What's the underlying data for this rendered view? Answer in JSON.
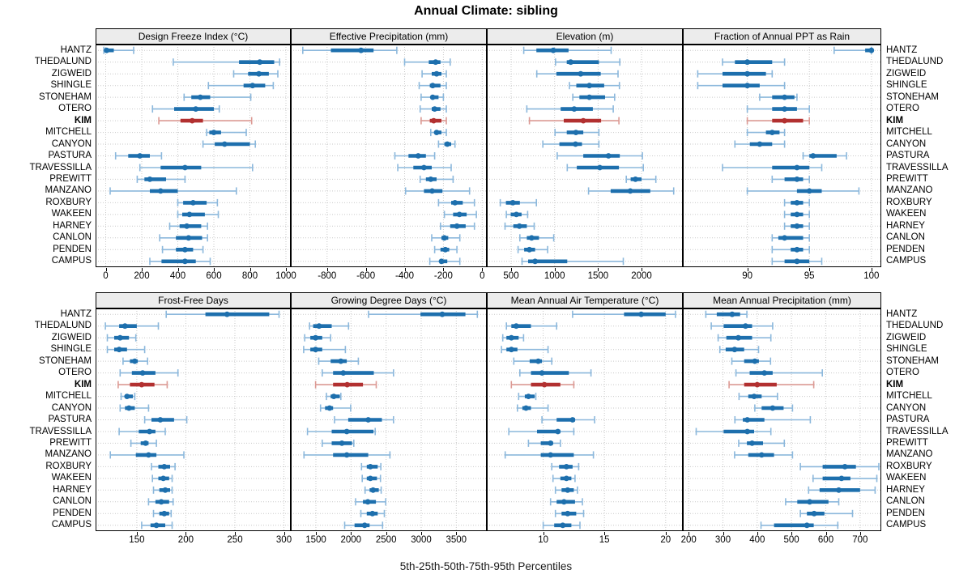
{
  "title": "Annual Climate: sibling",
  "caption": "5th-25th-50th-75th-95th Percentiles",
  "colors": {
    "blue_main": "#1d6fad",
    "blue_light": "#8cb8dc",
    "blue_cap": "#5e9cce",
    "red_main": "#b23030",
    "red_light": "#dc9a94",
    "red_cap": "#c express66",
    "grid": "#c9c9c9",
    "strip_bg": "#ececec",
    "border": "#000000"
  },
  "chart_data": {
    "type": "dotplot-interval",
    "note": "Each row shows 5th-25th-50th-75th-95th percentiles; dot = median, thick bar = 25th-75th, thin line with caps = 5th-95th",
    "highlight_station": "KIM",
    "stations": [
      "HANTZ",
      "THEDALUND",
      "ZIGWEID",
      "SHINGLE",
      "STONEHAM",
      "OTERO",
      "KIM",
      "MITCHELL",
      "CANYON",
      "PASTURA",
      "TRAVESSILLA",
      "PREWITT",
      "MANZANO",
      "ROXBURY",
      "WAKEEN",
      "HARNEY",
      "CANLON",
      "PENDEN",
      "CAMPUS"
    ],
    "panels": [
      {
        "title": "Design Freeze Index (°C)",
        "ticks": [
          0,
          200,
          400,
          600,
          800,
          1000
        ],
        "xlim": [
          -56,
          1027
        ],
        "values": [
          [
            -10,
            -3,
            5,
            45,
            155
          ],
          [
            375,
            740,
            855,
            935,
            965
          ],
          [
            710,
            790,
            850,
            905,
            955
          ],
          [
            570,
            765,
            815,
            885,
            930
          ],
          [
            435,
            475,
            525,
            580,
            805
          ],
          [
            260,
            380,
            500,
            600,
            630
          ],
          [
            295,
            415,
            480,
            540,
            810
          ],
          [
            560,
            575,
            600,
            640,
            780
          ],
          [
            540,
            605,
            660,
            800,
            830
          ],
          [
            55,
            125,
            190,
            245,
            310
          ],
          [
            190,
            305,
            440,
            530,
            815
          ],
          [
            175,
            215,
            245,
            335,
            440
          ],
          [
            25,
            245,
            305,
            400,
            725
          ],
          [
            400,
            430,
            485,
            560,
            620
          ],
          [
            400,
            425,
            465,
            550,
            625
          ],
          [
            355,
            410,
            450,
            530,
            565
          ],
          [
            300,
            390,
            460,
            535,
            565
          ],
          [
            315,
            390,
            440,
            485,
            540
          ],
          [
            245,
            310,
            440,
            500,
            580
          ]
        ]
      },
      {
        "title": "Effective Precipitation (mm)",
        "ticks": [
          -800,
          -600,
          -400,
          -200,
          0
        ],
        "xlim": [
          -987,
          24
        ],
        "values": [
          [
            -925,
            -780,
            -625,
            -560,
            -440
          ],
          [
            -400,
            -275,
            -240,
            -215,
            -165
          ],
          [
            -310,
            -260,
            -235,
            -210,
            -185
          ],
          [
            -325,
            -270,
            -255,
            -215,
            -185
          ],
          [
            -315,
            -265,
            -255,
            -225,
            -200
          ],
          [
            -320,
            -260,
            -245,
            -215,
            -185
          ],
          [
            -315,
            -270,
            -250,
            -210,
            -185
          ],
          [
            -265,
            -245,
            -235,
            -210,
            -185
          ],
          [
            -225,
            -195,
            -180,
            -160,
            -140
          ],
          [
            -450,
            -380,
            -330,
            -290,
            -245
          ],
          [
            -435,
            -355,
            -300,
            -260,
            -160
          ],
          [
            -320,
            -290,
            -265,
            -235,
            -150
          ],
          [
            -395,
            -300,
            -258,
            -205,
            -65
          ],
          [
            -225,
            -160,
            -140,
            -100,
            -40
          ],
          [
            -195,
            -150,
            -117,
            -80,
            -30
          ],
          [
            -215,
            -165,
            -130,
            -85,
            -40
          ],
          [
            -260,
            -210,
            -195,
            -175,
            -115
          ],
          [
            -245,
            -215,
            -190,
            -170,
            -130
          ],
          [
            -270,
            -220,
            -210,
            -180,
            -115
          ]
        ]
      },
      {
        "title": "Elevation (m)",
        "ticks": [
          500,
          1000,
          1500,
          2000
        ],
        "xlim": [
          220,
          2475
        ],
        "values": [
          [
            645,
            790,
            985,
            1160,
            1650
          ],
          [
            1010,
            1140,
            1185,
            1510,
            1750
          ],
          [
            795,
            1020,
            1300,
            1530,
            1730
          ],
          [
            1170,
            1250,
            1400,
            1570,
            1745
          ],
          [
            1210,
            1285,
            1400,
            1580,
            1690
          ],
          [
            680,
            1070,
            1225,
            1440,
            1675
          ],
          [
            710,
            1105,
            1330,
            1535,
            1740
          ],
          [
            1005,
            1140,
            1245,
            1330,
            1510
          ],
          [
            865,
            1055,
            1240,
            1315,
            1510
          ],
          [
            1030,
            1330,
            1620,
            1750,
            2010
          ],
          [
            1145,
            1255,
            1520,
            1740,
            2020
          ],
          [
            1825,
            1875,
            1930,
            2000,
            2165
          ],
          [
            1390,
            1645,
            1870,
            2100,
            2370
          ],
          [
            375,
            440,
            520,
            600,
            790
          ],
          [
            445,
            495,
            560,
            620,
            690
          ],
          [
            430,
            525,
            595,
            680,
            765
          ],
          [
            600,
            680,
            735,
            820,
            990
          ],
          [
            580,
            650,
            710,
            775,
            920
          ],
          [
            625,
            695,
            775,
            1145,
            1790
          ]
        ]
      },
      {
        "title": "Fraction of Annual PPT as Rain",
        "ticks": [
          90,
          95,
          100
        ],
        "xlim": [
          84.8,
          100.8
        ],
        "values": [
          [
            97,
            99.5,
            100,
            100,
            100
          ],
          [
            88,
            89,
            90,
            92,
            93
          ],
          [
            86,
            88,
            90,
            91.5,
            92
          ],
          [
            86,
            88,
            90,
            91,
            93
          ],
          [
            91,
            92,
            93,
            93.8,
            94
          ],
          [
            90,
            92,
            93,
            94,
            95
          ],
          [
            90,
            92,
            93,
            94.5,
            95
          ],
          [
            90,
            91.5,
            92,
            92.6,
            93
          ],
          [
            89,
            90.2,
            91,
            92,
            93
          ],
          [
            94.5,
            95,
            95.3,
            97.2,
            98
          ],
          [
            88,
            92,
            94,
            95,
            96
          ],
          [
            92,
            93,
            94,
            94.5,
            95
          ],
          [
            90,
            94,
            95,
            96,
            99
          ],
          [
            93,
            93.5,
            94,
            94.5,
            95
          ],
          [
            93,
            93.5,
            94,
            94.5,
            95
          ],
          [
            93,
            93.5,
            94,
            94.5,
            95
          ],
          [
            92,
            92.5,
            93,
            94.5,
            95
          ],
          [
            92,
            93.5,
            94,
            94.5,
            95
          ],
          [
            92,
            93,
            94,
            95,
            96
          ]
        ]
      },
      {
        "title": "Frost-Free Days",
        "ticks": [
          150,
          200,
          250,
          300
        ],
        "xlim": [
          108,
          307
        ],
        "values": [
          [
            180,
            220,
            242,
            285,
            295
          ],
          [
            118,
            132,
            138,
            150,
            172
          ],
          [
            120,
            127,
            133,
            142,
            149
          ],
          [
            120,
            127,
            132,
            140,
            158
          ],
          [
            136,
            143,
            148,
            151,
            161
          ],
          [
            133,
            145,
            156,
            169,
            192
          ],
          [
            131,
            143,
            155,
            168,
            181
          ],
          [
            134,
            138,
            140,
            146,
            148
          ],
          [
            133,
            138,
            142,
            148,
            162
          ],
          [
            158,
            165,
            174,
            188,
            201
          ],
          [
            132,
            152,
            163,
            169,
            179
          ],
          [
            144,
            154,
            159,
            162,
            170
          ],
          [
            123,
            149,
            162,
            170,
            198
          ],
          [
            165,
            172,
            178,
            184,
            189
          ],
          [
            166,
            172,
            177,
            183,
            186
          ],
          [
            167,
            173,
            179,
            184,
            186
          ],
          [
            162,
            169,
            175,
            183,
            187
          ],
          [
            167,
            173,
            178,
            183,
            185
          ],
          [
            155,
            164,
            170,
            179,
            186
          ]
        ]
      },
      {
        "title": "Growing Degree Days (°C)",
        "ticks": [
          1500,
          2000,
          2500,
          3000,
          3500
        ],
        "xlim": [
          1142,
          3935
        ],
        "values": [
          [
            2250,
            2990,
            3300,
            3630,
            3800
          ],
          [
            1410,
            1460,
            1545,
            1725,
            1965
          ],
          [
            1340,
            1420,
            1495,
            1590,
            1710
          ],
          [
            1325,
            1420,
            1495,
            1590,
            1920
          ],
          [
            1540,
            1710,
            1855,
            1940,
            2105
          ],
          [
            1590,
            1745,
            1890,
            2325,
            2605
          ],
          [
            1495,
            1745,
            1945,
            2170,
            2360
          ],
          [
            1650,
            1710,
            1755,
            1840,
            1855
          ],
          [
            1565,
            1630,
            1695,
            1745,
            1995
          ],
          [
            1765,
            1960,
            2245,
            2440,
            2605
          ],
          [
            1380,
            1725,
            1940,
            2320,
            2345
          ],
          [
            1590,
            1725,
            1870,
            2015,
            2040
          ],
          [
            1330,
            1745,
            1940,
            2245,
            2555
          ],
          [
            2150,
            2225,
            2275,
            2380,
            2425
          ],
          [
            2160,
            2225,
            2275,
            2370,
            2420
          ],
          [
            2200,
            2265,
            2315,
            2395,
            2430
          ],
          [
            2065,
            2170,
            2240,
            2355,
            2495
          ],
          [
            2140,
            2225,
            2305,
            2380,
            2475
          ],
          [
            1910,
            2050,
            2195,
            2265,
            2450
          ]
        ]
      },
      {
        "title": "Mean Annual Air Temperature (°C)",
        "ticks": [
          10,
          15,
          20
        ],
        "xlim": [
          5.4,
          21.4
        ],
        "values": [
          [
            12.4,
            16.6,
            18,
            20,
            20.8
          ],
          [
            7,
            7.4,
            7.8,
            9,
            11.1
          ],
          [
            6.7,
            7,
            7.4,
            8,
            8.4
          ],
          [
            6.6,
            7,
            7.4,
            7.9,
            10.4
          ],
          [
            7.6,
            8.9,
            9.6,
            9.9,
            10.7
          ],
          [
            8.1,
            9,
            9.9,
            12.1,
            13.9
          ],
          [
            7.4,
            9,
            10.1,
            11.4,
            12.5
          ],
          [
            8,
            8.5,
            8.8,
            9.3,
            9.4
          ],
          [
            7.9,
            8.3,
            8.6,
            9,
            10.4
          ],
          [
            9.9,
            11.1,
            12.4,
            12.6,
            14.2
          ],
          [
            7.2,
            9.5,
            11.2,
            11.4,
            12.5
          ],
          [
            8.8,
            9.8,
            10.6,
            10.8,
            11.4
          ],
          [
            6.9,
            9.8,
            10.6,
            12.5,
            14.1
          ],
          [
            10.7,
            11.3,
            11.9,
            12.4,
            12.9
          ],
          [
            10.8,
            11.4,
            11.9,
            12.3,
            12.6
          ],
          [
            11,
            11.5,
            12,
            12.5,
            12.8
          ],
          [
            10.6,
            11.1,
            11.7,
            12.6,
            13.2
          ],
          [
            11,
            11.5,
            12,
            12.7,
            13.3
          ],
          [
            10,
            10.9,
            11.6,
            12.3,
            13
          ]
        ]
      },
      {
        "title": "Mean Annual Precipitation (mm)",
        "ticks": [
          200,
          300,
          400,
          500,
          600,
          700
        ],
        "xlim": [
          183,
          762
        ],
        "values": [
          [
            250,
            282,
            327,
            350,
            370
          ],
          [
            266,
            302,
            366,
            385,
            445
          ],
          [
            286,
            310,
            345,
            385,
            440
          ],
          [
            291,
            308,
            334,
            362,
            404
          ],
          [
            326,
            362,
            393,
            405,
            439
          ],
          [
            338,
            378,
            421,
            445,
            590
          ],
          [
            318,
            362,
            400,
            457,
            565
          ],
          [
            347,
            374,
            391,
            413,
            459
          ],
          [
            393,
            413,
            445,
            477,
            503
          ],
          [
            335,
            358,
            371,
            421,
            555
          ],
          [
            222,
            302,
            371,
            391,
            440
          ],
          [
            346,
            370,
            385,
            417,
            479
          ],
          [
            334,
            374,
            413,
            449,
            503
          ],
          [
            526,
            591,
            656,
            688,
            755
          ],
          [
            563,
            591,
            646,
            672,
            749
          ],
          [
            550,
            582,
            638,
            700,
            744
          ],
          [
            483,
            517,
            553,
            608,
            638
          ],
          [
            526,
            545,
            566,
            596,
            678
          ],
          [
            411,
            449,
            545,
            565,
            635
          ]
        ]
      }
    ]
  }
}
